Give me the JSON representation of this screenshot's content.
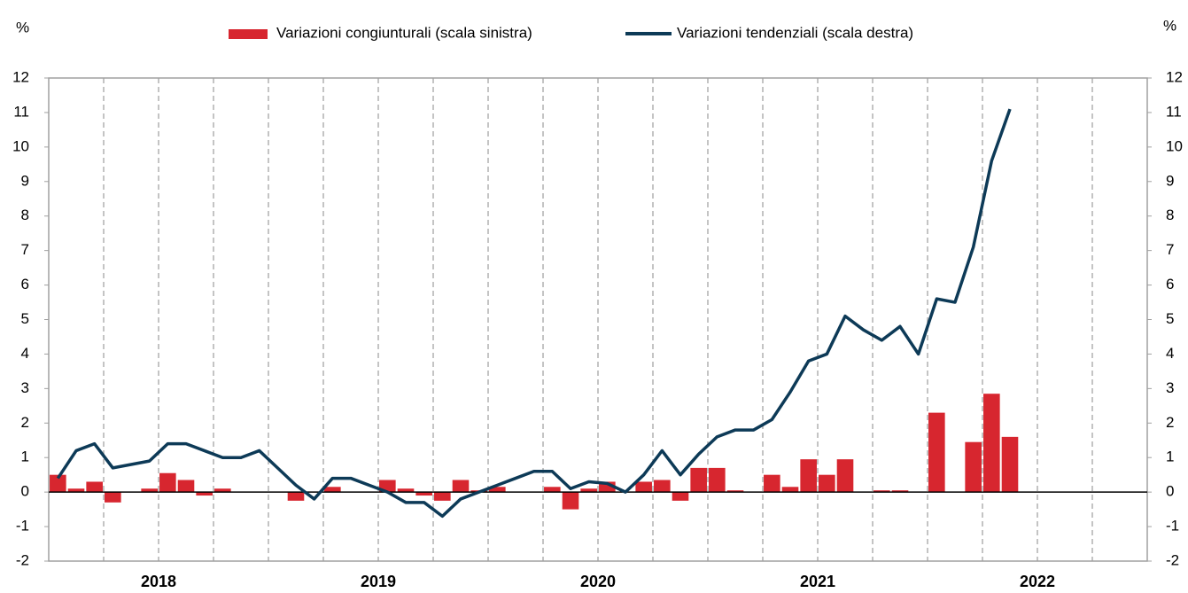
{
  "chart_data": {
    "type": "combo",
    "ylabel": "%",
    "y2label": "%",
    "categories": [
      null,
      null,
      null,
      null,
      null,
      null,
      null,
      null,
      null,
      null,
      null,
      null,
      null,
      null,
      null,
      null,
      null,
      null,
      null,
      null,
      null,
      null,
      null,
      null,
      null,
      null,
      null,
      null,
      null,
      null,
      null,
      null,
      null,
      null,
      null,
      null,
      null,
      null,
      null,
      null,
      null,
      null,
      null,
      null,
      null,
      null,
      null,
      null,
      null,
      null,
      null,
      null,
      null,
      null,
      null,
      null,
      null,
      null,
      null,
      null
    ],
    "year_labels": [
      "2018",
      "2019",
      "2020",
      "2021",
      "2022"
    ],
    "ylim": [
      -2,
      12
    ],
    "yticks": [
      -2,
      -1,
      0,
      1,
      2,
      3,
      4,
      5,
      6,
      7,
      8,
      9,
      10,
      11,
      12
    ],
    "y2lim": [
      -2,
      12
    ],
    "y2ticks": [
      -2,
      -1,
      0,
      1,
      2,
      3,
      4,
      5,
      6,
      7,
      8,
      9,
      10,
      11,
      12
    ],
    "series": [
      {
        "name": "Variazioni congiunturali (scala sinistra)",
        "type": "bar",
        "color": "#d7262f",
        "values": [
          0.5,
          0.1,
          0.3,
          -0.3,
          0,
          0.1,
          0.55,
          0.35,
          -0.1,
          0.1,
          0,
          0,
          0,
          -0.25,
          0,
          0.15,
          0,
          0,
          0.35,
          0.1,
          -0.1,
          -0.25,
          0.35,
          0.05,
          0.15,
          0,
          0,
          0.15,
          -0.5,
          0.1,
          0.3,
          0,
          0.3,
          0.35,
          -0.25,
          0.7,
          0.7,
          0.05,
          0,
          0.5,
          0.15,
          0.95,
          0.5,
          0.95,
          0,
          0.05,
          0.05,
          0,
          2.3,
          0,
          1.45,
          2.85,
          1.6,
          null,
          null,
          null,
          null,
          null,
          null,
          null
        ]
      },
      {
        "name": "Variazioni tendenziali (scala destra)",
        "type": "line",
        "color": "#0d3a57",
        "axis": "y2",
        "values": [
          0.4,
          1.2,
          1.4,
          0.7,
          0.8,
          0.9,
          1.4,
          1.4,
          1.2,
          1.0,
          1.0,
          1.2,
          0.7,
          0.2,
          -0.2,
          0.4,
          0.4,
          0.2,
          0.0,
          -0.3,
          -0.3,
          -0.7,
          -0.2,
          0.0,
          0.2,
          0.4,
          0.6,
          0.6,
          0.1,
          0.3,
          0.25,
          0.0,
          0.5,
          1.2,
          0.5,
          1.1,
          1.6,
          1.8,
          1.8,
          2.1,
          2.9,
          3.8,
          4.0,
          5.1,
          4.7,
          4.4,
          4.8,
          4.0,
          5.6,
          5.5,
          7.1,
          9.6,
          11.1,
          null,
          null,
          null,
          null,
          null,
          null,
          null
        ]
      }
    ]
  }
}
